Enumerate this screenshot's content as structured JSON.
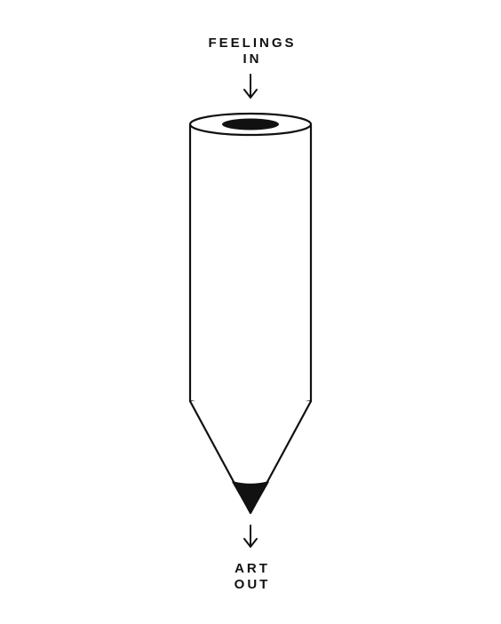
{
  "top_caption": {
    "line1": "FEELINGS",
    "line2": "IN"
  },
  "bottom_caption": {
    "line1": "ART",
    "line2": "OUT"
  },
  "colors": {
    "ink": "#111111",
    "background": "#ffffff"
  }
}
